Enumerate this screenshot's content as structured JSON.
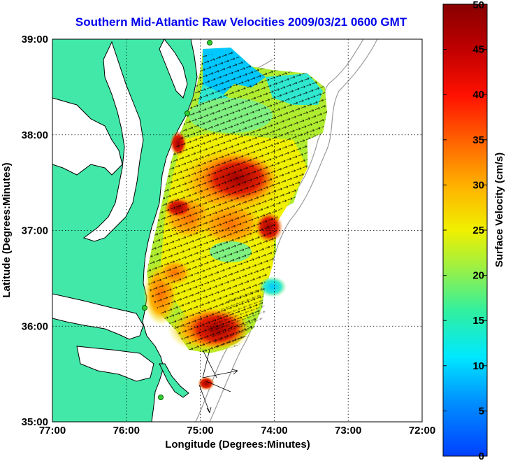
{
  "title": "Southern Mid-Atlantic Raw Velocities 2009/03/21 0600 GMT",
  "x_axis": {
    "label": "Longitude (Degrees:Minutes)",
    "ticks": [
      "77:00",
      "76:00",
      "75:00",
      "74:00",
      "73:00",
      "72:00"
    ],
    "values": [
      -77,
      -76,
      -75,
      -74,
      -73,
      -72
    ]
  },
  "y_axis": {
    "label": "Latitude (Degrees:Minutes)",
    "ticks": [
      "39:00",
      "38:00",
      "37:00",
      "36:00",
      "35:00"
    ],
    "values": [
      39,
      38,
      37,
      36,
      35
    ]
  },
  "colorbar": {
    "label": "Surface Velocity (cm/s)",
    "ticks": [
      "50",
      "45",
      "40",
      "35",
      "30",
      "25",
      "20",
      "15",
      "10",
      "5",
      "0"
    ],
    "range": [
      0,
      50
    ],
    "colormap": "jet"
  },
  "colors": {
    "land": "#41e8a8",
    "water": "#ffffff",
    "grid": "#000000",
    "bathymetry": "#9a9a9a",
    "title": "#0000ee",
    "stations": "#33cc33"
  },
  "map": {
    "lon_range": [
      -77,
      -72
    ],
    "lat_range": [
      35,
      39
    ],
    "grid": "dotted",
    "radar_stations": 4,
    "velocity_field": "black vector arrows over color-filled speed"
  }
}
